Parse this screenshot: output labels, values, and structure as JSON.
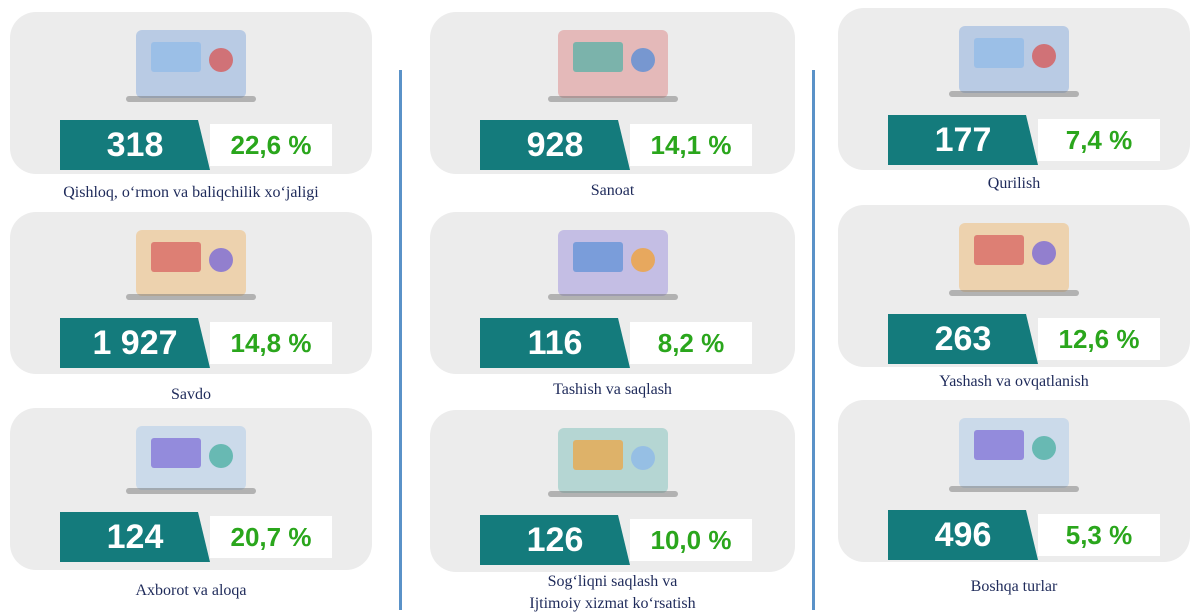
{
  "cards": [
    {
      "count": "318",
      "percent": "22,6 %",
      "label": "Qishloq, o‘rmon va baliqchilik xo‘jaligi"
    },
    {
      "count": "1 927",
      "percent": "14,8 %",
      "label": "Savdo"
    },
    {
      "count": "124",
      "percent": "20,7 %",
      "label": "Axborot va aloqa"
    },
    {
      "count": "928",
      "percent": "14,1 %",
      "label": "Sanoat"
    },
    {
      "count": "116",
      "percent": "8,2 %",
      "label": "Tashish va saqlash"
    },
    {
      "count": "126",
      "percent": "10,0 %",
      "label": "Sog‘liqni saqlash va\nIjtimoiy xizmat ko‘rsatish"
    },
    {
      "count": "177",
      "percent": "7,4 %",
      "label": "Qurilish"
    },
    {
      "count": "263",
      "percent": "12,6 %",
      "label": "Yashash va ovqatlanish"
    },
    {
      "count": "496",
      "percent": "5,3 %",
      "label": "Boshqa turlar"
    }
  ]
}
